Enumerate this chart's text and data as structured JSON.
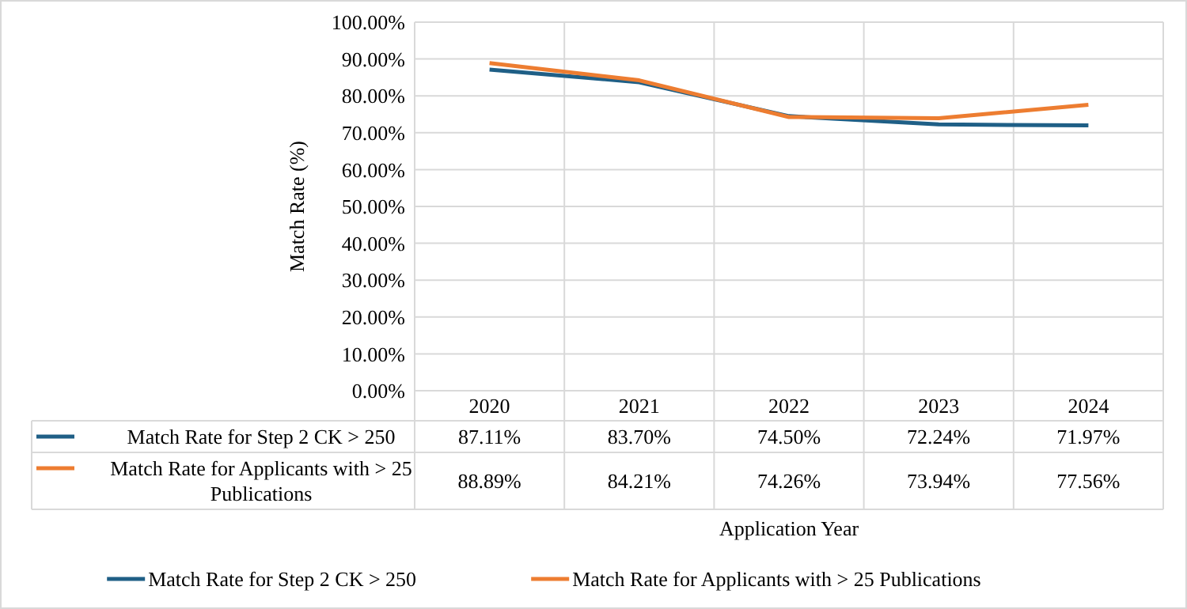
{
  "chart_data": {
    "type": "line",
    "xlabel": "Application Year",
    "ylabel": "Match Rate (%)",
    "categories": [
      "2020",
      "2021",
      "2022",
      "2023",
      "2024"
    ],
    "series": [
      {
        "name": "Match Rate for Step 2 CK > 250",
        "color": "#1f5f86",
        "values": [
          87.11,
          83.7,
          74.5,
          72.24,
          71.97
        ],
        "value_labels": [
          "87.11%",
          "83.70%",
          "74.50%",
          "72.24%",
          "71.97%"
        ]
      },
      {
        "name": "Match Rate for Applicants with > 25 Publications",
        "color": "#ed7d31",
        "values": [
          88.89,
          84.21,
          74.26,
          73.94,
          77.56
        ],
        "value_labels": [
          "88.89%",
          "84.21%",
          "74.26%",
          "73.94%",
          "77.56%"
        ]
      }
    ],
    "ylim": [
      0,
      100
    ],
    "yticks": [
      {
        "value": 0,
        "label": "0.00%"
      },
      {
        "value": 10,
        "label": "10.00%"
      },
      {
        "value": 20,
        "label": "20.00%"
      },
      {
        "value": 30,
        "label": "30.00%"
      },
      {
        "value": 40,
        "label": "40.00%"
      },
      {
        "value": 50,
        "label": "50.00%"
      },
      {
        "value": 60,
        "label": "60.00%"
      },
      {
        "value": 70,
        "label": "70.00%"
      },
      {
        "value": 80,
        "label": "80.00%"
      },
      {
        "value": 90,
        "label": "90.00%"
      },
      {
        "value": 100,
        "label": "100.00%"
      }
    ],
    "grid": true,
    "legend": "bottom",
    "line_style": "solid",
    "marker": "none"
  }
}
